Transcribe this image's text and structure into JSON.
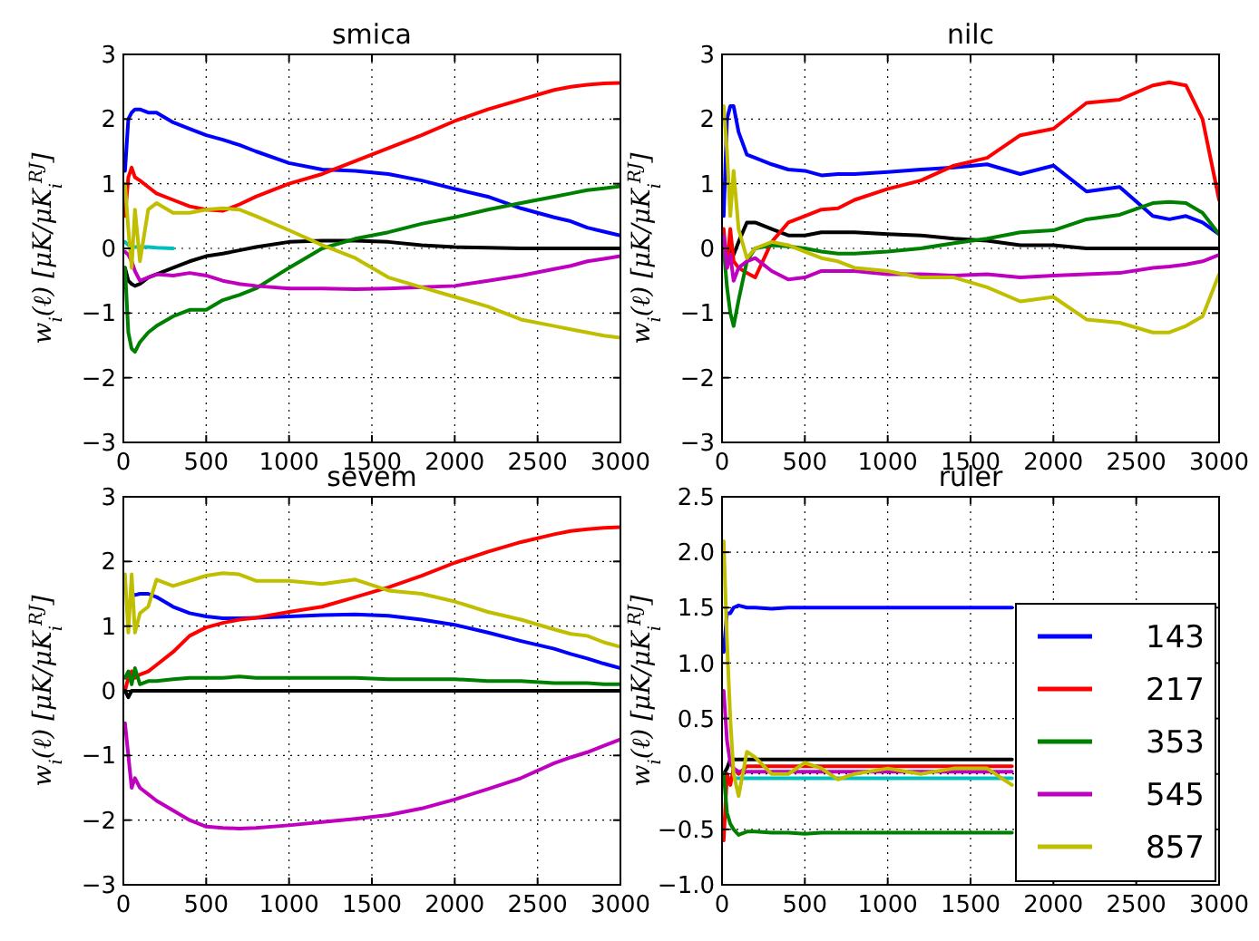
{
  "chart_data": [
    {
      "type": "line",
      "title": "smica",
      "ylabel": "w$_{i}$(ℓ) [μK/μK$_{i}$$^{RJ}$]",
      "xlim": [
        0,
        3000
      ],
      "xticks": [
        0,
        500,
        1000,
        1500,
        2000,
        2500,
        3000
      ],
      "ylim": [
        -3,
        3
      ],
      "yticks": [
        {
          "value": -3,
          "label": "−3"
        },
        {
          "value": -2,
          "label": "−2"
        },
        {
          "value": -1,
          "label": "−1"
        },
        0,
        1,
        2,
        3
      ],
      "grid": true,
      "line_style": "solid",
      "x": [
        10,
        30,
        50,
        70,
        100,
        150,
        200,
        300,
        400,
        500,
        600,
        700,
        800,
        1000,
        1200,
        1400,
        1600,
        1800,
        2000,
        2200,
        2400,
        2600,
        2700,
        2800,
        2900,
        3000
      ],
      "series": [
        {
          "color": "#00bfbf",
          "values": [
            0.1,
            0.05,
            0.02,
            0.02,
            0.02,
            0.02,
            0.01,
            0.0,
            null,
            null,
            null,
            null,
            null,
            null,
            null,
            null,
            null,
            null,
            null,
            null,
            null,
            null,
            null,
            null,
            null,
            null
          ]
        },
        {
          "color": "#000000",
          "values": [
            -0.3,
            -0.5,
            -0.55,
            -0.58,
            -0.55,
            -0.45,
            -0.4,
            -0.3,
            -0.2,
            -0.12,
            -0.08,
            -0.03,
            0.02,
            0.1,
            0.12,
            0.12,
            0.1,
            0.05,
            0.02,
            0.01,
            0,
            0,
            0,
            0,
            0,
            0
          ]
        },
        {
          "color": "#0000ff",
          "values": [
            1.2,
            2.0,
            2.1,
            2.15,
            2.15,
            2.1,
            2.1,
            1.95,
            1.85,
            1.75,
            1.68,
            1.6,
            1.5,
            1.32,
            1.22,
            1.2,
            1.15,
            1.05,
            0.92,
            0.8,
            0.62,
            0.48,
            0.42,
            0.32,
            0.26,
            0.2
          ]
        },
        {
          "color": "#ff0000",
          "values": [
            0.5,
            1.1,
            1.25,
            1.1,
            1.05,
            0.95,
            0.85,
            0.75,
            0.65,
            0.6,
            0.58,
            0.68,
            0.8,
            1.0,
            1.15,
            1.35,
            1.55,
            1.75,
            1.97,
            2.15,
            2.3,
            2.45,
            2.5,
            2.53,
            2.55,
            2.56
          ]
        },
        {
          "color": "#008000",
          "values": [
            -0.3,
            -1.3,
            -1.55,
            -1.6,
            -1.45,
            -1.3,
            -1.2,
            -1.05,
            -0.95,
            -0.95,
            -0.8,
            -0.72,
            -0.62,
            -0.3,
            0.0,
            0.15,
            0.25,
            0.38,
            0.48,
            0.6,
            0.7,
            0.8,
            0.85,
            0.9,
            0.93,
            0.96
          ]
        },
        {
          "color": "#bf00bf",
          "values": [
            -0.05,
            -0.1,
            -0.2,
            -0.35,
            -0.5,
            -0.45,
            -0.4,
            -0.42,
            -0.38,
            -0.42,
            -0.5,
            -0.55,
            -0.58,
            -0.62,
            -0.62,
            -0.63,
            -0.62,
            -0.6,
            -0.58,
            -0.5,
            -0.42,
            -0.32,
            -0.27,
            -0.2,
            -0.16,
            -0.12
          ]
        },
        {
          "color": "#bfbf00",
          "values": [
            1.0,
            0.3,
            -0.3,
            0.6,
            -0.2,
            0.6,
            0.7,
            0.55,
            0.55,
            0.6,
            0.62,
            0.6,
            0.5,
            0.28,
            0.05,
            -0.15,
            -0.45,
            -0.6,
            -0.75,
            -0.9,
            -1.1,
            -1.2,
            -1.25,
            -1.3,
            -1.35,
            -1.38
          ]
        }
      ]
    },
    {
      "type": "line",
      "title": "nilc",
      "ylabel": "w$_{i}$(ℓ) [μK/μK$_{i}$$^{RJ}$]",
      "xlim": [
        0,
        3000
      ],
      "xticks": [
        0,
        500,
        1000,
        1500,
        2000,
        2500,
        3000
      ],
      "ylim": [
        -3,
        3
      ],
      "yticks": [
        {
          "value": -3,
          "label": "−3"
        },
        {
          "value": -2,
          "label": "−2"
        },
        {
          "value": -1,
          "label": "−1"
        },
        0,
        1,
        2,
        3
      ],
      "grid": true,
      "line_style": "solid",
      "x": [
        10,
        30,
        50,
        70,
        100,
        150,
        200,
        300,
        400,
        500,
        600,
        700,
        800,
        1000,
        1200,
        1400,
        1600,
        1800,
        2000,
        2200,
        2400,
        2600,
        2700,
        2800,
        2900,
        3000
      ],
      "series": [
        {
          "color": "#000000",
          "values": [
            0.0,
            -0.1,
            0.0,
            -0.1,
            0.1,
            0.4,
            0.4,
            0.3,
            0.2,
            0.2,
            0.25,
            0.25,
            0.25,
            0.22,
            0.2,
            0.15,
            0.12,
            0.05,
            0.05,
            0,
            0,
            0,
            0,
            0,
            0,
            0
          ]
        },
        {
          "color": "#0000ff",
          "values": [
            0.5,
            2.0,
            2.2,
            2.2,
            1.8,
            1.45,
            1.4,
            1.3,
            1.22,
            1.2,
            1.13,
            1.15,
            1.15,
            1.18,
            1.22,
            1.25,
            1.3,
            1.15,
            1.28,
            0.88,
            0.95,
            0.5,
            0.45,
            0.5,
            0.4,
            0.22
          ]
        },
        {
          "color": "#ff0000",
          "values": [
            0.3,
            -0.3,
            0.3,
            -0.2,
            -0.3,
            -0.38,
            -0.45,
            0.1,
            0.4,
            0.5,
            0.6,
            0.62,
            0.75,
            0.92,
            1.05,
            1.28,
            1.4,
            1.75,
            1.85,
            2.25,
            2.3,
            2.52,
            2.57,
            2.52,
            2.0,
            0.75
          ]
        },
        {
          "color": "#008000",
          "values": [
            0.0,
            -0.6,
            -1.0,
            -1.2,
            -0.8,
            -0.2,
            0.0,
            0.05,
            0.03,
            0.0,
            -0.05,
            -0.08,
            -0.08,
            -0.05,
            0.0,
            0.08,
            0.15,
            0.25,
            0.28,
            0.45,
            0.52,
            0.7,
            0.72,
            0.7,
            0.55,
            0.22
          ]
        },
        {
          "color": "#bf00bf",
          "values": [
            0.2,
            -0.3,
            -0.1,
            -0.5,
            -0.3,
            -0.2,
            -0.15,
            -0.35,
            -0.48,
            -0.45,
            -0.35,
            -0.35,
            -0.35,
            -0.4,
            -0.4,
            -0.42,
            -0.4,
            -0.45,
            -0.42,
            -0.4,
            -0.38,
            -0.3,
            -0.28,
            -0.25,
            -0.2,
            -0.1
          ]
        },
        {
          "color": "#bfbf00",
          "values": [
            2.2,
            1.5,
            0.5,
            1.2,
            0.3,
            -0.15,
            0.0,
            0.1,
            0.05,
            -0.05,
            -0.15,
            -0.2,
            -0.3,
            -0.35,
            -0.45,
            -0.45,
            -0.6,
            -0.82,
            -0.75,
            -1.1,
            -1.15,
            -1.3,
            -1.3,
            -1.2,
            -1.05,
            -0.4
          ]
        }
      ]
    },
    {
      "type": "line",
      "title": "sevem",
      "ylabel": "w$_{i}$(ℓ) [μK/μK$_{i}$$^{RJ}$]",
      "xlim": [
        0,
        3000
      ],
      "xticks": [
        0,
        500,
        1000,
        1500,
        2000,
        2500,
        3000
      ],
      "ylim": [
        -3,
        3
      ],
      "yticks": [
        {
          "value": -3,
          "label": "−3"
        },
        {
          "value": -2,
          "label": "−2"
        },
        {
          "value": -1,
          "label": "−1"
        },
        0,
        1,
        2,
        3
      ],
      "grid": true,
      "line_style": "solid",
      "x": [
        10,
        30,
        50,
        70,
        100,
        150,
        200,
        300,
        400,
        500,
        600,
        700,
        800,
        1000,
        1200,
        1400,
        1600,
        1800,
        2000,
        2200,
        2400,
        2600,
        2700,
        2800,
        2900,
        3000
      ],
      "series": [
        {
          "color": "#0000ff",
          "values": [
            null,
            null,
            1.5,
            1.48,
            1.5,
            1.5,
            1.45,
            1.3,
            1.2,
            1.15,
            1.12,
            1.12,
            1.13,
            1.15,
            1.17,
            1.18,
            1.16,
            1.1,
            1.02,
            0.9,
            0.77,
            0.65,
            0.57,
            0.5,
            0.42,
            0.35
          ]
        },
        {
          "color": "#ff0000",
          "values": [
            0.0,
            0.2,
            0.3,
            0.2,
            0.25,
            0.3,
            0.4,
            0.6,
            0.85,
            0.98,
            1.05,
            1.1,
            1.13,
            1.22,
            1.3,
            1.45,
            1.6,
            1.78,
            1.98,
            2.15,
            2.3,
            2.42,
            2.47,
            2.5,
            2.52,
            2.53
          ]
        },
        {
          "color": "#008000",
          "values": [
            0.2,
            0.3,
            0.1,
            0.35,
            0.1,
            0.15,
            0.15,
            0.18,
            0.2,
            0.2,
            0.2,
            0.22,
            0.2,
            0.2,
            0.2,
            0.2,
            0.18,
            0.18,
            0.18,
            0.15,
            0.15,
            0.12,
            0.12,
            0.12,
            0.1,
            0.1
          ]
        },
        {
          "color": "#bf00bf",
          "values": [
            -0.5,
            -1.0,
            -1.5,
            -1.35,
            -1.5,
            -1.6,
            -1.7,
            -1.85,
            -2.0,
            -2.1,
            -2.12,
            -2.13,
            -2.12,
            -2.08,
            -2.03,
            -1.98,
            -1.92,
            -1.82,
            -1.68,
            -1.52,
            -1.35,
            -1.12,
            -1.03,
            -0.95,
            -0.85,
            -0.75
          ]
        },
        {
          "color": "#bfbf00",
          "values": [
            1.8,
            0.9,
            1.8,
            0.9,
            1.2,
            1.3,
            1.72,
            1.62,
            1.7,
            1.78,
            1.82,
            1.8,
            1.7,
            1.7,
            1.65,
            1.72,
            1.55,
            1.5,
            1.38,
            1.22,
            1.1,
            0.95,
            0.88,
            0.85,
            0.75,
            0.68
          ]
        },
        {
          "color": "#000000",
          "values": [
            0,
            -0.1,
            0,
            0,
            0,
            0,
            0,
            0,
            0,
            0,
            0,
            0,
            0,
            0,
            0,
            0,
            0,
            0,
            0,
            0,
            0,
            0,
            0,
            0,
            0,
            0
          ]
        }
      ]
    },
    {
      "type": "line",
      "title": "ruler",
      "ylabel": "w$_{i}$(ℓ) [μK/μK$_{i}$$^{RJ}$]",
      "xlim": [
        0,
        3000
      ],
      "xticks": [
        0,
        500,
        1000,
        1500,
        2000,
        2500,
        3000
      ],
      "ylim": [
        -1,
        2.5
      ],
      "yticks": [
        {
          "value": -1,
          "label": "−1.0"
        },
        {
          "value": -0.5,
          "label": "−0.5"
        },
        {
          "value": 0,
          "label": "0.0"
        },
        0.5,
        {
          "value": 1,
          "label": "1.0"
        },
        1.5,
        {
          "value": 2,
          "label": "2.0"
        },
        2.5
      ],
      "grid": true,
      "line_style": "solid",
      "legend": "bottom right",
      "x": [
        10,
        30,
        50,
        70,
        100,
        150,
        200,
        300,
        400,
        500,
        600,
        700,
        800,
        1000,
        1200,
        1400,
        1600,
        1700,
        1750
      ],
      "series": [
        {
          "color": "#000000",
          "values": [
            0.0,
            0.05,
            0.13,
            0.13,
            0.13,
            0.13,
            0.13,
            0.13,
            0.13,
            0.13,
            0.13,
            0.13,
            0.13,
            0.13,
            0.13,
            0.13,
            0.13,
            0.13,
            0.13
          ]
        },
        {
          "color": "#00bfbf",
          "values": [
            0.0,
            -0.04,
            -0.04,
            -0.04,
            -0.04,
            -0.04,
            -0.04,
            -0.04,
            -0.04,
            -0.04,
            -0.04,
            -0.04,
            -0.04,
            -0.04,
            -0.04,
            -0.04,
            -0.04,
            -0.04,
            -0.04
          ]
        },
        {
          "name": "143",
          "color": "#0000ff",
          "values": [
            1.1,
            1.45,
            1.45,
            1.5,
            1.52,
            1.5,
            1.5,
            1.49,
            1.5,
            1.5,
            1.5,
            1.5,
            1.5,
            1.5,
            1.5,
            1.5,
            1.5,
            1.5,
            1.5
          ]
        },
        {
          "name": "217",
          "color": "#ff0000",
          "values": [
            -0.6,
            0.0,
            -0.1,
            0.05,
            0.0,
            0.07,
            0.07,
            0.07,
            0.07,
            0.07,
            0.07,
            0.07,
            0.07,
            0.07,
            0.07,
            0.07,
            0.07,
            0.07,
            0.07
          ]
        },
        {
          "name": "353",
          "color": "#008000",
          "values": [
            0.0,
            -0.35,
            -0.45,
            -0.5,
            -0.55,
            -0.52,
            -0.52,
            -0.53,
            -0.53,
            -0.54,
            -0.53,
            -0.53,
            -0.53,
            -0.53,
            -0.53,
            -0.53,
            -0.53,
            -0.53,
            -0.53
          ]
        },
        {
          "name": "545",
          "color": "#bf00bf",
          "values": [
            0.75,
            0.3,
            0.1,
            0.05,
            0.02,
            0.02,
            0.02,
            0.02,
            0.02,
            0.02,
            0.02,
            0.02,
            0.02,
            0.02,
            0.02,
            0.02,
            0.02,
            0.02,
            0.02
          ]
        },
        {
          "name": "857",
          "color": "#bfbf00",
          "values": [
            2.1,
            1.2,
            0.5,
            0.0,
            -0.2,
            0.2,
            0.15,
            0.0,
            0.0,
            0.1,
            0.05,
            -0.05,
            0.0,
            0.05,
            0.0,
            0.05,
            0.05,
            -0.05,
            -0.1
          ]
        }
      ]
    }
  ]
}
